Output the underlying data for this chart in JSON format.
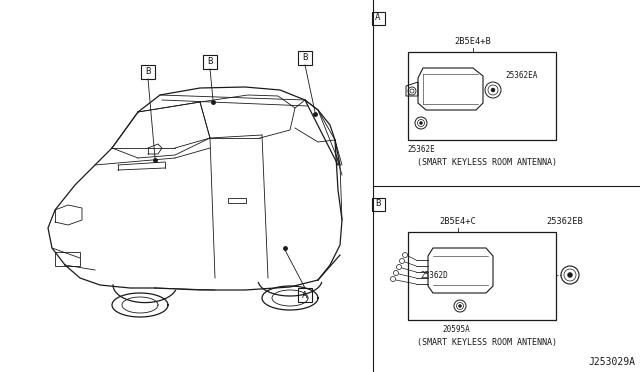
{
  "bg_color": "#ffffff",
  "line_color": "#1a1a1a",
  "text_color": "#1a1a1a",
  "fig_width": 6.4,
  "fig_height": 3.72,
  "section_A_label": "A",
  "section_B_label": "B",
  "section_A_caption": "(SMART KEYLESS ROOM ANTENNA)",
  "section_B_caption": "(SMART KEYLESS ROOM ANTENNA)",
  "part_A_connector": "2B5E4+B",
  "part_A_label1": "25362EA",
  "part_A_label2": "25362E",
  "part_B_connector": "2B5E4+C",
  "part_B_label1": "25362EB",
  "part_B_label2": "25362D",
  "part_B_label3": "20595A",
  "diagram_id": "J253029A",
  "font_size_tiny": 5.5,
  "font_size_small": 6.2,
  "font_size_caption": 6.0,
  "font_size_id": 7.0,
  "font_size_section": 6.5
}
